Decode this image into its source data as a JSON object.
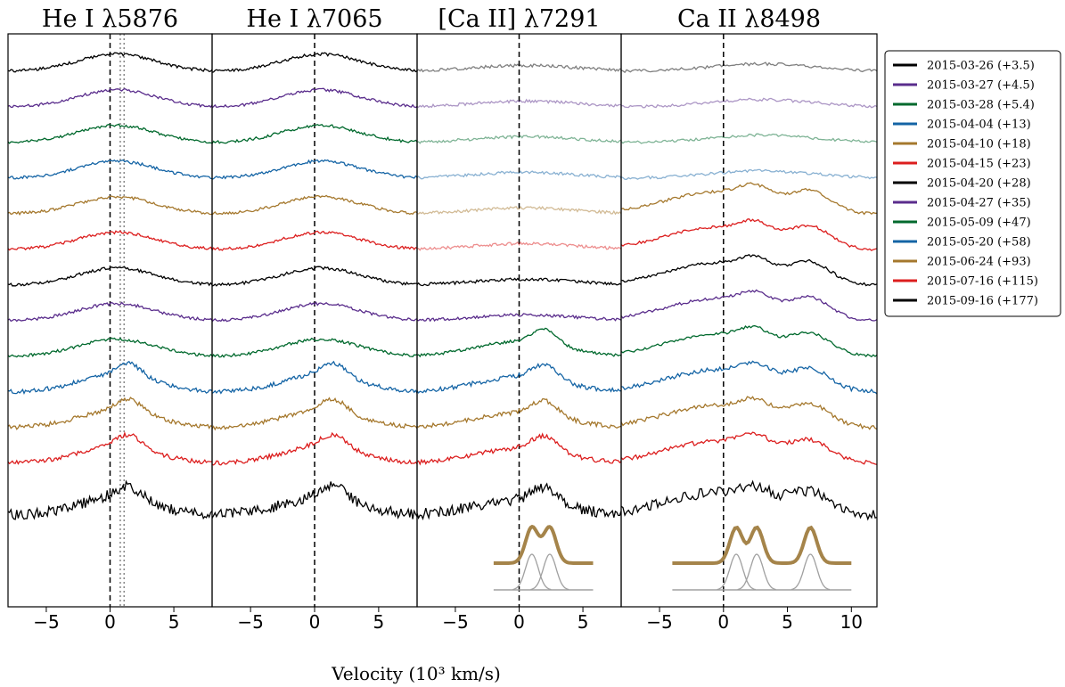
{
  "chart_data": {
    "type": "line",
    "xlabel": "Velocity (10³ km/s)",
    "legend_position": "right",
    "grid": false,
    "panels": [
      {
        "title": "He I λ5876",
        "xlim": [
          -8,
          8
        ],
        "xticks": [
          -5,
          0,
          5
        ],
        "xtick_labels": [
          "−5",
          "0",
          "5"
        ],
        "vlines": [
          0
        ],
        "dotted_vlines": [
          0.8,
          1.1
        ]
      },
      {
        "title": "He I λ7065",
        "xlim": [
          -8,
          8
        ],
        "xticks": [
          -5,
          0,
          5
        ],
        "xtick_labels": [
          "−5",
          "0",
          "5"
        ],
        "vlines": [
          0
        ],
        "dotted_vlines": []
      },
      {
        "title": "[Ca II] λ7291",
        "xlim": [
          -8,
          8
        ],
        "xticks": [
          -5,
          0,
          5
        ],
        "xtick_labels": [
          "−5",
          "0",
          "5"
        ],
        "vlines": [
          0
        ],
        "dotted_vlines": [],
        "fit_components": [
          1.0,
          2.4
        ],
        "fit_range": [
          -2,
          5.8
        ],
        "faded_epochs": 6
      },
      {
        "title": "Ca II λ8498",
        "xlim": [
          -8,
          12
        ],
        "xticks": [
          -5,
          0,
          5,
          10
        ],
        "xtick_labels": [
          "−5",
          "0",
          "5",
          "10"
        ],
        "vlines": [
          0
        ],
        "dotted_vlines": [],
        "fit_components": [
          1.0,
          2.6,
          6.8
        ],
        "fit_range": [
          -4,
          10
        ],
        "faded_epochs": 4
      }
    ],
    "series": [
      {
        "name": "2015-03-26 (+3.5)",
        "color": "#000000"
      },
      {
        "name": "2015-03-27 (+4.5)",
        "color": "#5a2d8c"
      },
      {
        "name": "2015-03-28 (+5.4)",
        "color": "#00692d"
      },
      {
        "name": "2015-04-04 (+13)",
        "color": "#1464a5"
      },
      {
        "name": "2015-04-10 (+18)",
        "color": "#a5782d"
      },
      {
        "name": "2015-04-15 (+23)",
        "color": "#dc1e1e"
      },
      {
        "name": "2015-04-20 (+28)",
        "color": "#000000"
      },
      {
        "name": "2015-04-27 (+35)",
        "color": "#5a2d8c"
      },
      {
        "name": "2015-05-09 (+47)",
        "color": "#00692d"
      },
      {
        "name": "2015-05-20 (+58)",
        "color": "#1464a5"
      },
      {
        "name": "2015-06-24 (+93)",
        "color": "#a5782d"
      },
      {
        "name": "2015-07-16 (+115)",
        "color": "#dc1e1e"
      },
      {
        "name": "2015-09-16 (+177)",
        "color": "#000000"
      }
    ],
    "fit_color": "#a5844a",
    "component_color": "#a0a0a0"
  }
}
